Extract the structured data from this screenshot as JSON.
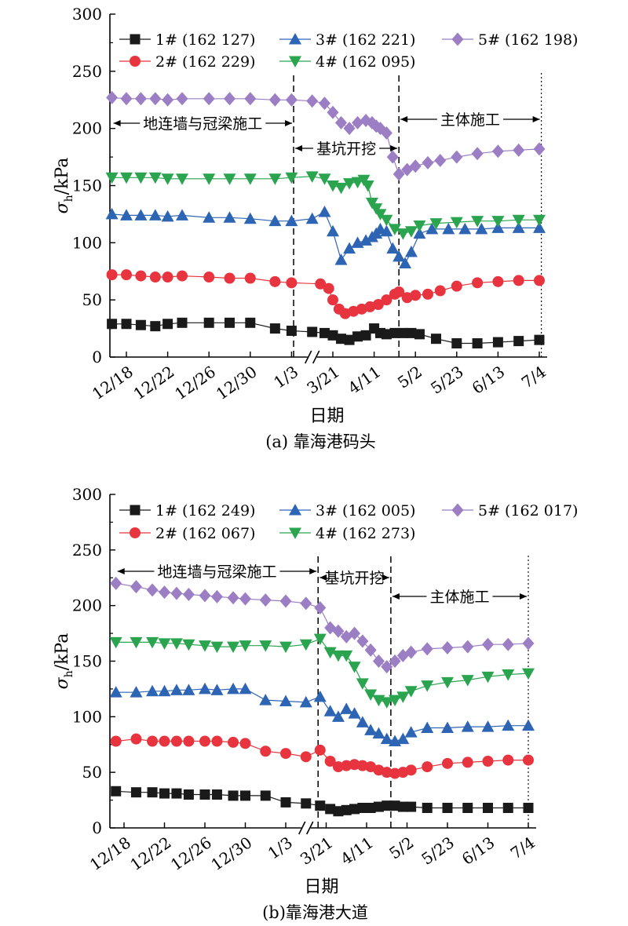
{
  "chart_data": [
    {
      "type": "line",
      "caption": "(a) 靠海港码头",
      "xlabel": "日期",
      "ylabel_sym": "σ",
      "ylabel_sub": "h",
      "ylabel_unit": "/kPa",
      "ylim": [
        0,
        300
      ],
      "yticks": [
        0,
        50,
        100,
        150,
        200,
        250,
        300
      ],
      "x_tick_labels": [
        "12/18",
        "12/22",
        "12/26",
        "12/30",
        "1/3",
        "3/21",
        "4/11",
        "5/2",
        "5/23",
        "6/13",
        "7/4"
      ],
      "x_tick_pos": [
        0,
        1,
        2,
        3,
        4,
        5,
        6,
        7,
        8,
        9,
        10
      ],
      "axis_break_between": [
        "1/3",
        "3/21"
      ],
      "phases": [
        {
          "label": "地连墙与冠梁施工",
          "from": -0.35,
          "to": 4.05
        },
        {
          "label": "基坑开挖",
          "from": 4.05,
          "to": 6.6
        },
        {
          "label": "主体施工",
          "from": 6.6,
          "to": 10.05
        }
      ],
      "phase_lines": [
        4.05,
        6.6,
        10.05
      ],
      "series": [
        {
          "name": "1# (162 127)",
          "marker": "square",
          "color": "#1a1a1a",
          "x": [
            -0.35,
            0,
            0.35,
            0.7,
            1,
            1.35,
            2,
            2.5,
            3,
            3.6,
            4,
            4.5,
            4.8,
            5,
            5.2,
            5.4,
            5.6,
            5.8,
            6,
            6.15,
            6.3,
            6.5,
            6.7,
            6.9,
            7.1,
            7.5,
            8,
            8.5,
            9,
            9.5,
            10
          ],
          "y": [
            29,
            29,
            28,
            27,
            29,
            30,
            30,
            30,
            30,
            25,
            23,
            22,
            21,
            19,
            16,
            15,
            18,
            19,
            25,
            21,
            20,
            21,
            21,
            21,
            20,
            16,
            12,
            12,
            13,
            14,
            15
          ]
        },
        {
          "name": "2# (162 229)",
          "marker": "circle",
          "color": "#e8343f",
          "x": [
            -0.35,
            0,
            0.35,
            0.7,
            1,
            1.35,
            2,
            2.5,
            3,
            3.6,
            4,
            4.7,
            4.9,
            5,
            5.15,
            5.3,
            5.5,
            5.7,
            5.9,
            6.1,
            6.3,
            6.5,
            6.6,
            6.8,
            7,
            7.3,
            7.6,
            8,
            8.5,
            9,
            9.5,
            10
          ],
          "y": [
            72,
            72,
            71,
            70,
            70,
            71,
            70,
            69,
            69,
            66,
            65,
            64,
            60,
            50,
            42,
            38,
            40,
            42,
            44,
            46,
            50,
            55,
            57,
            52,
            54,
            55,
            58,
            62,
            65,
            66,
            67,
            67
          ]
        },
        {
          "name": "3# (162 221)",
          "marker": "triangle-up",
          "color": "#2e64b4",
          "x": [
            -0.35,
            0,
            0.35,
            0.7,
            1,
            1.35,
            2,
            2.5,
            3,
            3.6,
            4,
            4.5,
            4.8,
            5,
            5.2,
            5.4,
            5.6,
            5.8,
            5.95,
            6.05,
            6.15,
            6.3,
            6.45,
            6.6,
            6.75,
            6.9,
            7.1,
            7.4,
            7.8,
            8.2,
            8.6,
            9,
            9.5,
            10
          ],
          "y": [
            125,
            124,
            124,
            124,
            123,
            124,
            122,
            122,
            121,
            119,
            119,
            121,
            127,
            110,
            85,
            95,
            100,
            102,
            105,
            108,
            112,
            110,
            95,
            88,
            82,
            92,
            108,
            112,
            112,
            112,
            112,
            113,
            113,
            113
          ]
        },
        {
          "name": "4# (162 095)",
          "marker": "triangle-down",
          "color": "#2aa44f",
          "x": [
            -0.35,
            0,
            0.35,
            0.7,
            1,
            1.35,
            2,
            2.5,
            3,
            3.6,
            4,
            4.5,
            4.8,
            5,
            5.2,
            5.4,
            5.6,
            5.75,
            5.85,
            5.95,
            6.05,
            6.15,
            6.3,
            6.5,
            6.7,
            6.9,
            7.1,
            7.5,
            8,
            8.5,
            9,
            9.5,
            10
          ],
          "y": [
            157,
            157,
            157,
            157,
            156,
            156,
            156,
            156,
            156,
            156,
            157,
            158,
            156,
            150,
            148,
            152,
            153,
            155,
            150,
            135,
            130,
            125,
            120,
            112,
            108,
            110,
            115,
            117,
            118,
            119,
            119,
            120,
            120
          ]
        },
        {
          "name": "5# (162 198)",
          "marker": "diamond",
          "color": "#9b7ec4",
          "x": [
            -0.35,
            0,
            0.35,
            0.7,
            1,
            1.35,
            2,
            2.5,
            3,
            3.6,
            4,
            4.5,
            4.8,
            5,
            5.2,
            5.4,
            5.6,
            5.8,
            5.95,
            6.05,
            6.15,
            6.3,
            6.45,
            6.6,
            6.8,
            7,
            7.3,
            7.6,
            8,
            8.5,
            9,
            9.5,
            10
          ],
          "y": [
            227,
            226,
            226,
            226,
            225,
            226,
            226,
            226,
            226,
            225,
            225,
            224,
            222,
            214,
            205,
            200,
            205,
            207,
            205,
            202,
            200,
            196,
            175,
            160,
            164,
            167,
            170,
            172,
            175,
            178,
            180,
            181,
            182
          ]
        }
      ]
    },
    {
      "type": "line",
      "caption": "(b)靠海港大道",
      "xlabel": "日期",
      "ylabel_sym": "σ",
      "ylabel_sub": "h",
      "ylabel_unit": "/kPa",
      "ylim": [
        0,
        300
      ],
      "yticks": [
        0,
        50,
        100,
        150,
        200,
        250,
        300
      ],
      "x_tick_labels": [
        "12/18",
        "12/22",
        "12/26",
        "12/30",
        "1/3",
        "3/21",
        "4/11",
        "5/2",
        "5/23",
        "6/13",
        "7/4"
      ],
      "x_tick_pos": [
        0,
        1,
        2,
        3,
        4,
        5,
        6,
        7,
        8,
        9,
        10
      ],
      "axis_break_between": [
        "1/3",
        "3/21"
      ],
      "phases": [
        {
          "label": "地连墙与冠梁施工",
          "from": -0.2,
          "to": 4.8
        },
        {
          "label": "基坑开挖",
          "from": 4.8,
          "to": 6.6
        },
        {
          "label": "主体施工",
          "from": 6.6,
          "to": 10
        }
      ],
      "phase_lines": [
        4.8,
        6.6,
        10
      ],
      "series": [
        {
          "name": "1# (162 249)",
          "marker": "square",
          "color": "#1a1a1a",
          "x": [
            -0.2,
            0.3,
            0.7,
            1,
            1.3,
            1.6,
            2,
            2.3,
            2.7,
            3,
            3.5,
            4,
            4.5,
            4.85,
            5.1,
            5.3,
            5.5,
            5.7,
            5.9,
            6.1,
            6.3,
            6.5,
            6.7,
            6.9,
            7.1,
            7.5,
            8,
            8.5,
            9,
            9.5,
            10
          ],
          "y": [
            33,
            32,
            32,
            31,
            31,
            30,
            30,
            30,
            29,
            29,
            29,
            23,
            22,
            20,
            17,
            15,
            16,
            17,
            18,
            18,
            19,
            20,
            20,
            19,
            19,
            18,
            18,
            18,
            18,
            18,
            18
          ]
        },
        {
          "name": "2# (162 067)",
          "marker": "circle",
          "color": "#e8343f",
          "x": [
            -0.2,
            0.3,
            0.7,
            1,
            1.3,
            1.6,
            2,
            2.3,
            2.7,
            3,
            3.5,
            4,
            4.5,
            4.85,
            5.1,
            5.3,
            5.5,
            5.7,
            5.9,
            6.1,
            6.3,
            6.5,
            6.7,
            6.9,
            7.1,
            7.5,
            8,
            8.5,
            9,
            9.5,
            10
          ],
          "y": [
            78,
            80,
            78,
            78,
            78,
            78,
            78,
            78,
            77,
            76,
            69,
            67,
            64,
            70,
            60,
            55,
            56,
            57,
            56,
            55,
            52,
            50,
            49,
            50,
            52,
            55,
            58,
            59,
            60,
            61,
            61
          ]
        },
        {
          "name": "3# (162 005)",
          "marker": "triangle-up",
          "color": "#2e64b4",
          "x": [
            -0.2,
            0.3,
            0.7,
            1,
            1.3,
            1.6,
            2,
            2.3,
            2.7,
            3,
            3.5,
            4,
            4.5,
            4.85,
            5.1,
            5.3,
            5.5,
            5.7,
            5.9,
            6.1,
            6.3,
            6.5,
            6.7,
            6.9,
            7.1,
            7.5,
            8,
            8.5,
            9,
            9.5,
            10
          ],
          "y": [
            122,
            122,
            123,
            123,
            124,
            124,
            125,
            124,
            125,
            125,
            115,
            114,
            113,
            118,
            105,
            100,
            107,
            103,
            95,
            88,
            85,
            80,
            78,
            80,
            86,
            90,
            90,
            91,
            91,
            92,
            92
          ]
        },
        {
          "name": "4# (162 273)",
          "marker": "triangle-down",
          "color": "#2aa44f",
          "x": [
            -0.2,
            0.3,
            0.7,
            1,
            1.3,
            1.6,
            2,
            2.3,
            2.7,
            3,
            3.5,
            4,
            4.5,
            4.85,
            5.1,
            5.3,
            5.5,
            5.7,
            5.9,
            6.1,
            6.3,
            6.5,
            6.7,
            6.9,
            7.1,
            7.5,
            8,
            8.5,
            9,
            9.5,
            10
          ],
          "y": [
            167,
            167,
            167,
            166,
            166,
            165,
            164,
            163,
            163,
            164,
            164,
            163,
            165,
            170,
            158,
            155,
            155,
            145,
            130,
            120,
            115,
            113,
            115,
            118,
            123,
            128,
            131,
            133,
            136,
            138,
            139
          ]
        },
        {
          "name": "5# (162 017)",
          "marker": "diamond",
          "color": "#9b7ec4",
          "x": [
            -0.2,
            0.3,
            0.7,
            1,
            1.3,
            1.6,
            2,
            2.3,
            2.7,
            3,
            3.5,
            4,
            4.5,
            4.85,
            5.1,
            5.3,
            5.5,
            5.7,
            5.9,
            6.1,
            6.3,
            6.5,
            6.7,
            6.9,
            7.1,
            7.5,
            8,
            8.5,
            9,
            9.5,
            10
          ],
          "y": [
            220,
            217,
            214,
            212,
            211,
            210,
            209,
            208,
            207,
            206,
            205,
            204,
            202,
            198,
            180,
            177,
            172,
            175,
            168,
            160,
            150,
            145,
            150,
            155,
            158,
            161,
            162,
            163,
            165,
            165,
            166
          ]
        }
      ]
    }
  ]
}
